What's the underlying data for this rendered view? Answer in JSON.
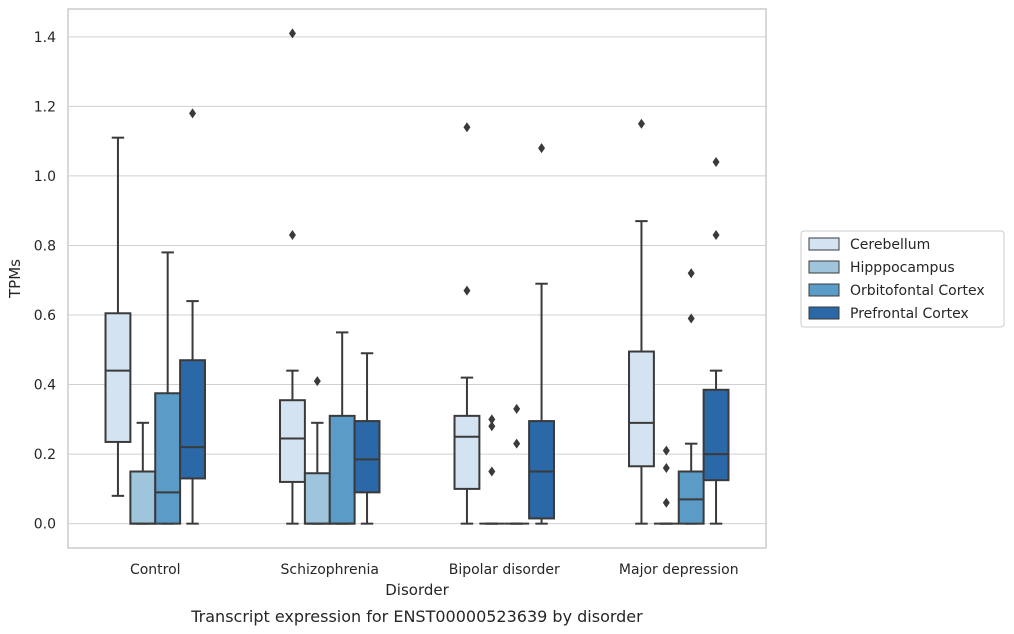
{
  "chart_data": {
    "type": "box",
    "caption": "Transcript expression for ENST00000523639 by disorder",
    "xlabel": "Disorder",
    "ylabel": "TPMs",
    "ylim": [
      -0.07,
      1.48
    ],
    "yticks": [
      "0.0",
      "0.2",
      "0.4",
      "0.6",
      "0.8",
      "1.0",
      "1.2",
      "1.4"
    ],
    "grid": true,
    "legend_position": "right",
    "categories": [
      "Control",
      "Schizophrenia",
      "Bipolar disorder",
      "Major depression"
    ],
    "series": [
      {
        "name": "Cerebellum",
        "color": "#d4e3f1",
        "boxes": [
          {
            "whisker_low": 0.08,
            "q1": 0.235,
            "median": 0.44,
            "q3": 0.605,
            "whisker_high": 1.11,
            "outliers": []
          },
          {
            "whisker_low": 0.0,
            "q1": 0.12,
            "median": 0.245,
            "q3": 0.355,
            "whisker_high": 0.44,
            "outliers": [
              0.83,
              1.41
            ]
          },
          {
            "whisker_low": 0.0,
            "q1": 0.1,
            "median": 0.25,
            "q3": 0.31,
            "whisker_high": 0.42,
            "outliers": [
              0.67,
              1.14
            ]
          },
          {
            "whisker_low": 0.0,
            "q1": 0.165,
            "median": 0.29,
            "q3": 0.495,
            "whisker_high": 0.87,
            "outliers": [
              1.15
            ]
          }
        ]
      },
      {
        "name": "Hipppocampus",
        "color": "#9ec5dc",
        "boxes": [
          {
            "whisker_low": 0.0,
            "q1": 0.0,
            "median": 0.0,
            "q3": 0.15,
            "whisker_high": 0.29,
            "outliers": []
          },
          {
            "whisker_low": 0.0,
            "q1": 0.0,
            "median": 0.0,
            "q3": 0.145,
            "whisker_high": 0.29,
            "outliers": [
              0.41
            ]
          },
          {
            "whisker_low": 0.0,
            "q1": 0.0,
            "median": 0.0,
            "q3": 0.0,
            "whisker_high": 0.0,
            "outliers": [
              0.15,
              0.28,
              0.3
            ]
          },
          {
            "whisker_low": 0.0,
            "q1": 0.0,
            "median": 0.0,
            "q3": 0.0,
            "whisker_high": 0.0,
            "outliers": [
              0.06,
              0.16,
              0.21
            ]
          }
        ]
      },
      {
        "name": "Orbitofontal Cortex",
        "color": "#5b9bc8",
        "boxes": [
          {
            "whisker_low": 0.0,
            "q1": 0.0,
            "median": 0.09,
            "q3": 0.375,
            "whisker_high": 0.78,
            "outliers": []
          },
          {
            "whisker_low": 0.0,
            "q1": 0.0,
            "median": 0.0,
            "q3": 0.31,
            "whisker_high": 0.55,
            "outliers": []
          },
          {
            "whisker_low": 0.0,
            "q1": 0.0,
            "median": 0.0,
            "q3": 0.0,
            "whisker_high": 0.0,
            "outliers": [
              0.23,
              0.33
            ]
          },
          {
            "whisker_low": 0.0,
            "q1": 0.0,
            "median": 0.07,
            "q3": 0.15,
            "whisker_high": 0.23,
            "outliers": [
              0.59,
              0.72
            ]
          }
        ]
      },
      {
        "name": "Prefrontal Cortex",
        "color": "#2a68a7",
        "boxes": [
          {
            "whisker_low": 0.0,
            "q1": 0.13,
            "median": 0.22,
            "q3": 0.47,
            "whisker_high": 0.64,
            "outliers": [
              1.18
            ]
          },
          {
            "whisker_low": 0.0,
            "q1": 0.09,
            "median": 0.185,
            "q3": 0.295,
            "whisker_high": 0.49,
            "outliers": []
          },
          {
            "whisker_low": 0.0,
            "q1": 0.015,
            "median": 0.15,
            "q3": 0.295,
            "whisker_high": 0.69,
            "outliers": [
              1.08
            ]
          },
          {
            "whisker_low": 0.0,
            "q1": 0.125,
            "median": 0.2,
            "q3": 0.385,
            "whisker_high": 0.44,
            "outliers": [
              0.83,
              1.04
            ]
          }
        ]
      }
    ]
  }
}
